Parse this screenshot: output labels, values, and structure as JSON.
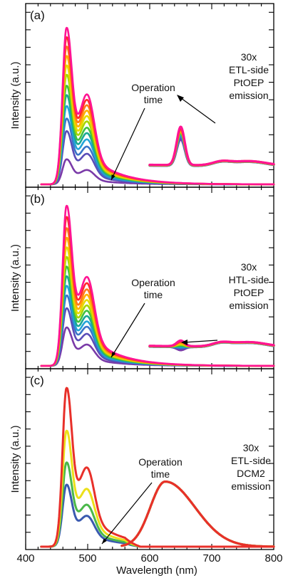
{
  "colors": {
    "ramp_a": [
      "#ff1493",
      "#ff2a2a",
      "#ff7a1a",
      "#ffb000",
      "#e6dc00",
      "#a6d600",
      "#40c040",
      "#1aa894",
      "#22a5d8",
      "#3a75c8",
      "#5a4db8",
      "#7a3aa8"
    ],
    "ramp_c": [
      "#e8302a",
      "#ece01a",
      "#4ab84a",
      "#3a5ab0"
    ]
  },
  "chart_data": [
    {
      "type": "line",
      "panel": "(a)",
      "xlim": [
        400,
        800
      ],
      "ylabel": "Intensity (a.u.)",
      "annotations": {
        "arrow_text": [
          "Operation",
          "time"
        ],
        "emission_text": [
          "30x",
          "ETL-side",
          "PtOEP",
          "emission"
        ]
      },
      "emitter_peaks": {
        "x": [
          467,
          500
        ],
        "ratio": 0.78
      },
      "side_peak": {
        "x": 650,
        "start": 600
      },
      "series": [
        {
          "peak": 1.0,
          "side_peak": 0.37
        },
        {
          "peak": 0.94,
          "side_peak": 0.36
        },
        {
          "peak": 0.88,
          "side_peak": 0.355
        },
        {
          "peak": 0.82,
          "side_peak": 0.35
        },
        {
          "peak": 0.76,
          "side_peak": 0.345
        },
        {
          "peak": 0.7,
          "side_peak": 0.34
        },
        {
          "peak": 0.63,
          "side_peak": 0.335
        },
        {
          "peak": 0.57,
          "side_peak": 0.33
        },
        {
          "peak": 0.5,
          "side_peak": 0.32
        },
        {
          "peak": 0.42,
          "side_peak": 0.31
        },
        {
          "peak": 0.34,
          "side_peak": 0.3
        },
        {
          "peak": 0.16,
          "side_peak": 0.29
        }
      ]
    },
    {
      "type": "line",
      "panel": "(b)",
      "xlim": [
        400,
        800
      ],
      "ylabel": "Intensity (a.u.)",
      "annotations": {
        "arrow_text": [
          "Operation",
          "time"
        ],
        "emission_text": [
          "30x",
          "HTL-side",
          "PtOEP",
          "emission"
        ]
      },
      "emitter_peaks": {
        "x": [
          467,
          500
        ],
        "ratio": 0.74
      },
      "side_peak": {
        "x": 650,
        "start": 600
      },
      "series": [
        {
          "peak": 1.0,
          "side_peak": 0.16
        },
        {
          "peak": 0.93,
          "side_peak": 0.155
        },
        {
          "peak": 0.86,
          "side_peak": 0.15
        },
        {
          "peak": 0.8,
          "side_peak": 0.145
        },
        {
          "peak": 0.74,
          "side_peak": 0.14
        },
        {
          "peak": 0.68,
          "side_peak": 0.135
        },
        {
          "peak": 0.62,
          "side_peak": 0.13
        },
        {
          "peak": 0.56,
          "side_peak": 0.125
        },
        {
          "peak": 0.5,
          "side_peak": 0.12
        },
        {
          "peak": 0.44,
          "side_peak": 0.115
        },
        {
          "peak": 0.36,
          "side_peak": 0.11
        },
        {
          "peak": 0.24,
          "side_peak": 0.1
        }
      ]
    },
    {
      "type": "line",
      "panel": "(c)",
      "xlim": [
        400,
        800
      ],
      "xticks": [
        400,
        500,
        600,
        700,
        800
      ],
      "xlabel": "Wavelength (nm)",
      "ylabel": "Intensity (a.u.)",
      "annotations": {
        "arrow_text": [
          "Operation",
          "time"
        ],
        "emission_text": [
          "30x",
          "ETL-side",
          "DCM2",
          "emission"
        ]
      },
      "emitter_peaks": {
        "x": [
          467,
          500
        ],
        "ratio": 0.62
      },
      "broad_peak": {
        "x": 625,
        "start": 555
      },
      "series": [
        {
          "peak": 1.0,
          "side_peak": 0.41
        },
        {
          "peak": 0.73,
          "side_peak": 0.41
        },
        {
          "peak": 0.53,
          "side_peak": 0.41
        },
        {
          "peak": 0.39,
          "side_peak": 0.41
        }
      ]
    }
  ]
}
